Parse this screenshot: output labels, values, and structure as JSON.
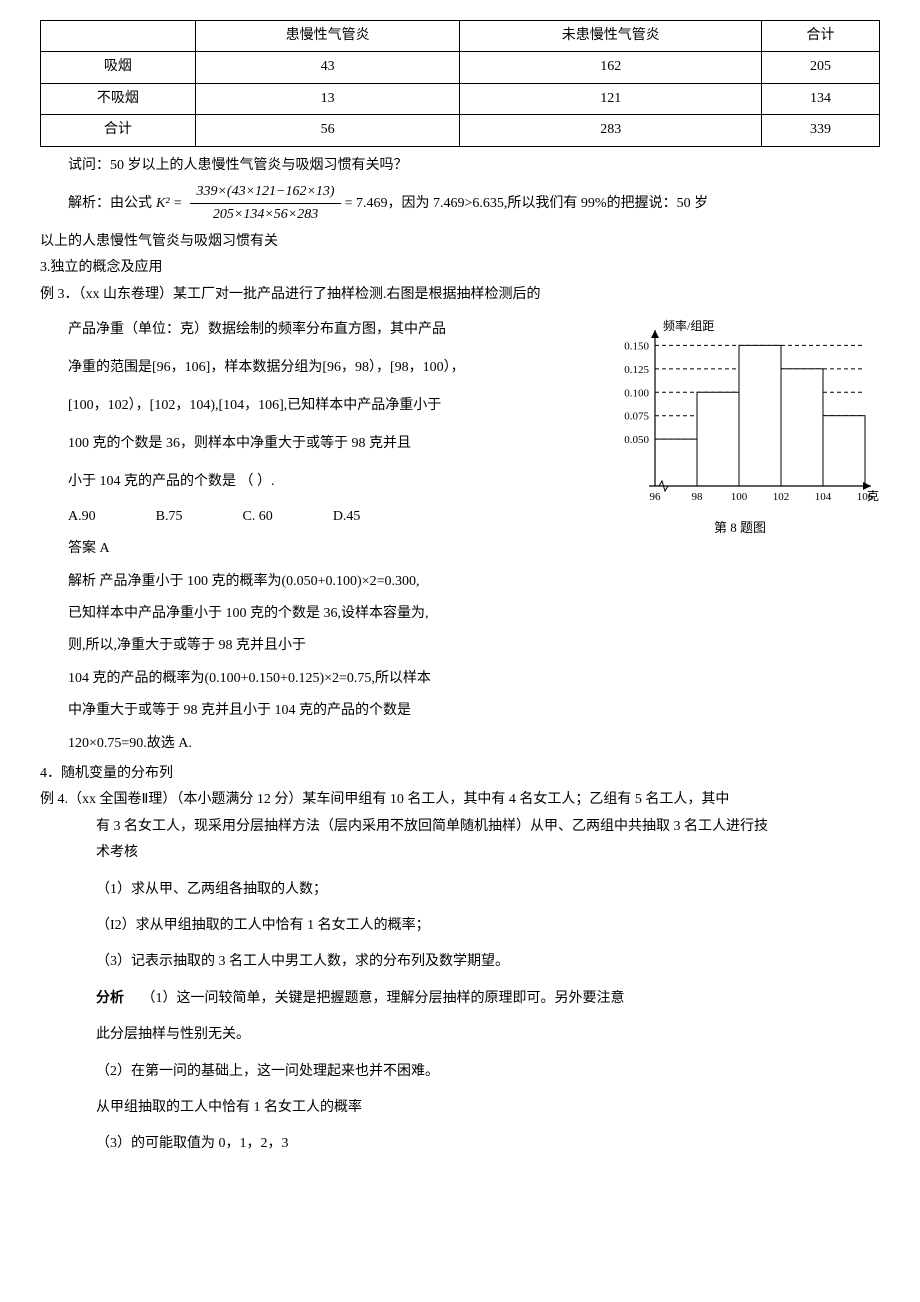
{
  "contingency_table": {
    "headers": [
      "",
      "患慢性气管炎",
      "未患慢性气管炎",
      "合计"
    ],
    "rows": [
      [
        "吸烟",
        "43",
        "162",
        "205"
      ],
      [
        "不吸烟",
        "13",
        "121",
        "134"
      ],
      [
        "合计",
        "56",
        "283",
        "339"
      ]
    ],
    "col_widths": [
      "22%",
      "26%",
      "26%",
      "26%"
    ]
  },
  "question2": "试问：50 岁以上的人患慢性气管炎与吸烟习惯有关吗？",
  "analysis2": {
    "prefix": "解析：由公式",
    "k2_label": "K² =",
    "numerator": "339×(43×121−162×13)",
    "denominator": "205×134×56×283",
    "result": "= 7.469",
    "tail": "，因为 7.469>6.635,所以我们有 99%的把握说：50 岁"
  },
  "analysis2_line2": "以上的人患慢性气管炎与吸烟习惯有关",
  "section3_title": "3.独立的概念及应用",
  "example3": {
    "header": "例 3．（xx 山东卷理）某工厂对一批产品进行了抽样检测.右图是根据抽样检测后的",
    "lines": [
      "产品净重（单位：克）数据绘制的频率分布直方图，其中产品",
      "净重的范围是[96，106]，样本数据分组为[96，98），[98，100），",
      "[100，102），[102，104),[104，106],已知样本中产品净重小于",
      "100 克的个数是 36，则样本中净重大于或等于 98 克并且",
      "小于 104 克的产品的个数是                  （      ）."
    ],
    "options": {
      "A": "A.90",
      "B": "B.75",
      "C": "C.  60",
      "D": "D.45"
    },
    "answer": "答案  A",
    "explain": [
      "解析  产品净重小于 100 克的概率为(0.050+0.100)×2=0.300,",
      "已知样本中产品净重小于 100 克的个数是 36,设样本容量为,",
      "则,所以,净重大于或等于 98 克并且小于",
      "104 克的产品的概率为(0.100+0.150+0.125)×2=0.75,所以样本",
      "中净重大于或等于 98 克并且小于 104 克的产品的个数是",
      "120×0.75=90.故选 A."
    ]
  },
  "histogram": {
    "ylabel": "频率/组距",
    "xlabel": "克",
    "caption": "第 8 题图",
    "yticks": [
      "0.050",
      "0.075",
      "0.100",
      "0.125",
      "0.150"
    ],
    "xticks": [
      "96",
      "98",
      "100",
      "102",
      "104",
      "106"
    ],
    "bars": [
      0.05,
      0.1,
      0.15,
      0.125,
      0.075
    ],
    "bar_color": "#ffffff",
    "bar_stroke": "#000000",
    "grid_dash": "4,3",
    "axis_color": "#000000",
    "font_size": 11
  },
  "section4_title": "4．随机变量的分布列",
  "example4": {
    "header": "例 4.（xx 全国卷Ⅱ理）（本小题满分 12 分）某车间甲组有 10 名工人，其中有 4 名女工人；乙组有 5 名工人，其中",
    "header2": "有 3 名女工人，现采用分层抽样方法（层内采用不放回简单随机抽样）从甲、乙两组中共抽取 3 名工人进行技",
    "header3": "术考核",
    "q1": "（1）求从甲、乙两组各抽取的人数；",
    "q2": "（I2）求从甲组抽取的工人中恰有 1 名女工人的概率；",
    "q3": "（3）记表示抽取的 3 名工人中男工人数，求的分布列及数学期望。",
    "analysis_label": "分析",
    "analysis1": "（1）这一问较简单，关键是把握题意，理解分层抽样的原理即可。另外要注意",
    "analysis1b": "此分层抽样与性别无关。",
    "analysis2": "（2）在第一问的基础上，这一问处理起来也并不困难。",
    "analysis2b": "从甲组抽取的工人中恰有 1 名女工人的概率",
    "analysis3": "（3）的可能取值为 0，1，2，3"
  }
}
